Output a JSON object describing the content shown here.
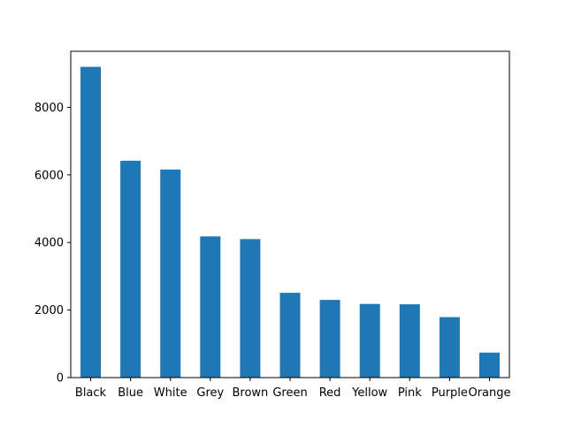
{
  "chart_data": {
    "type": "bar",
    "title": "",
    "xlabel": "",
    "ylabel": "",
    "categories": [
      "Black",
      "Blue",
      "White",
      "Grey",
      "Brown",
      "Green",
      "Red",
      "Yellow",
      "Pink",
      "Purple",
      "Orange"
    ],
    "values": [
      9200,
      6420,
      6160,
      4180,
      4100,
      2510,
      2300,
      2180,
      2170,
      1790,
      740
    ],
    "ylim": [
      0,
      9660
    ],
    "yticks": [
      0,
      2000,
      4000,
      6000,
      8000
    ],
    "grid": false,
    "legend": "none",
    "bar_color": "#1f77b4"
  }
}
